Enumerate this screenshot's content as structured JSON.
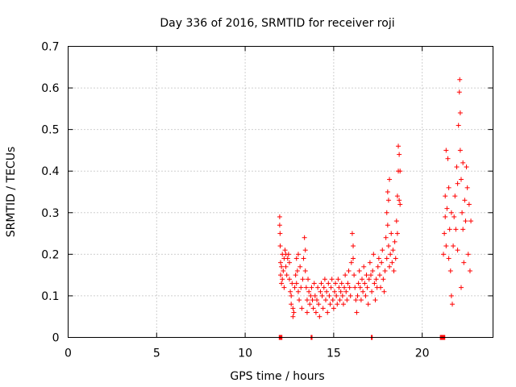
{
  "chart_data": {
    "type": "scatter",
    "title": "Day 336 of 2016, SRMTID for receiver roji",
    "xlabel": "GPS time / hours",
    "ylabel": "SRMTID / TECUs",
    "xlim": [
      0,
      24
    ],
    "ylim": [
      0,
      0.7
    ],
    "xticks": [
      0,
      5,
      10,
      15,
      20
    ],
    "yticks": [
      0,
      0.1,
      0.2,
      0.3,
      0.4,
      0.5,
      0.6,
      0.7
    ],
    "xtick_labels": [
      "0",
      "5",
      "10",
      "15",
      "20"
    ],
    "ytick_labels": [
      "0",
      "0.1",
      "0.2",
      "0.3",
      "0.4",
      "0.5",
      "0.6",
      "0.7"
    ],
    "grid": true,
    "marker": "+",
    "color": "#ff0000",
    "series": [
      {
        "name": "SRMTID",
        "points": [
          [
            11.95,
            0.29
          ],
          [
            11.95,
            0.27
          ],
          [
            11.97,
            0.25
          ],
          [
            11.98,
            0.22
          ],
          [
            12.0,
            0.18
          ],
          [
            12.0,
            0.15
          ],
          [
            12.05,
            0.13
          ],
          [
            12.05,
            0.17
          ],
          [
            12.1,
            0.2
          ],
          [
            12.1,
            0.14
          ],
          [
            12.15,
            0.16
          ],
          [
            12.2,
            0.19
          ],
          [
            12.2,
            0.12
          ],
          [
            12.25,
            0.21
          ],
          [
            12.3,
            0.17
          ],
          [
            12.3,
            0.2
          ],
          [
            12.35,
            0.15
          ],
          [
            12.4,
            0.19
          ],
          [
            12.45,
            0.2
          ],
          [
            12.5,
            0.18
          ],
          [
            12.5,
            0.14
          ],
          [
            12.55,
            0.11
          ],
          [
            12.6,
            0.1
          ],
          [
            12.6,
            0.08
          ],
          [
            12.65,
            0.13
          ],
          [
            12.7,
            0.07
          ],
          [
            12.7,
            0.05
          ],
          [
            12.75,
            0.06
          ],
          [
            12.8,
            0.12
          ],
          [
            12.85,
            0.15
          ],
          [
            12.9,
            0.19
          ],
          [
            12.9,
            0.13
          ],
          [
            12.95,
            0.16
          ],
          [
            13.0,
            0.2
          ],
          [
            13.0,
            0.11
          ],
          [
            13.05,
            0.09
          ],
          [
            13.1,
            0.17
          ],
          [
            13.15,
            0.12
          ],
          [
            13.2,
            0.07
          ],
          [
            13.25,
            0.14
          ],
          [
            13.3,
            0.19
          ],
          [
            13.35,
            0.24
          ],
          [
            13.4,
            0.21
          ],
          [
            13.4,
            0.16
          ],
          [
            13.45,
            0.12
          ],
          [
            13.5,
            0.09
          ],
          [
            13.5,
            0.06
          ],
          [
            13.55,
            0.14
          ],
          [
            13.6,
            0.11
          ],
          [
            13.65,
            0.08
          ],
          [
            13.7,
            0.1
          ],
          [
            13.75,
            0.12
          ],
          [
            13.8,
            0.09
          ],
          [
            13.85,
            0.07
          ],
          [
            13.9,
            0.13
          ],
          [
            13.95,
            0.1
          ],
          [
            14.0,
            0.06
          ],
          [
            14.05,
            0.09
          ],
          [
            14.1,
            0.12
          ],
          [
            14.15,
            0.08
          ],
          [
            14.2,
            0.05
          ],
          [
            14.25,
            0.11
          ],
          [
            14.3,
            0.13
          ],
          [
            14.35,
            0.1
          ],
          [
            14.4,
            0.07
          ],
          [
            14.45,
            0.12
          ],
          [
            14.5,
            0.14
          ],
          [
            14.55,
            0.09
          ],
          [
            14.6,
            0.11
          ],
          [
            14.65,
            0.06
          ],
          [
            14.7,
            0.13
          ],
          [
            14.75,
            0.1
          ],
          [
            14.8,
            0.08
          ],
          [
            14.85,
            0.12
          ],
          [
            14.9,
            0.14
          ],
          [
            14.95,
            0.09
          ],
          [
            15.0,
            0.07
          ],
          [
            15.05,
            0.11
          ],
          [
            15.1,
            0.13
          ],
          [
            15.15,
            0.1
          ],
          [
            15.2,
            0.08
          ],
          [
            15.25,
            0.14
          ],
          [
            15.3,
            0.12
          ],
          [
            15.35,
            0.09
          ],
          [
            15.4,
            0.11
          ],
          [
            15.45,
            0.13
          ],
          [
            15.5,
            0.1
          ],
          [
            15.55,
            0.08
          ],
          [
            15.6,
            0.12
          ],
          [
            15.65,
            0.15
          ],
          [
            15.7,
            0.11
          ],
          [
            15.75,
            0.09
          ],
          [
            15.8,
            0.13
          ],
          [
            15.85,
            0.16
          ],
          [
            15.9,
            0.12
          ],
          [
            15.95,
            0.1
          ],
          [
            16.0,
            0.18
          ],
          [
            16.05,
            0.25
          ],
          [
            16.1,
            0.22
          ],
          [
            16.1,
            0.19
          ],
          [
            16.15,
            0.15
          ],
          [
            16.2,
            0.12
          ],
          [
            16.25,
            0.09
          ],
          [
            16.3,
            0.06
          ],
          [
            16.35,
            0.1
          ],
          [
            16.4,
            0.13
          ],
          [
            16.45,
            0.16
          ],
          [
            16.5,
            0.12
          ],
          [
            16.55,
            0.09
          ],
          [
            16.6,
            0.14
          ],
          [
            16.65,
            0.11
          ],
          [
            16.7,
            0.17
          ],
          [
            16.75,
            0.13
          ],
          [
            16.8,
            0.1
          ],
          [
            16.85,
            0.15
          ],
          [
            16.9,
            0.12
          ],
          [
            16.95,
            0.08
          ],
          [
            17.0,
            0.14
          ],
          [
            17.05,
            0.18
          ],
          [
            17.1,
            0.15
          ],
          [
            17.15,
            0.11
          ],
          [
            17.2,
            0.16
          ],
          [
            17.25,
            0.2
          ],
          [
            17.3,
            0.13
          ],
          [
            17.35,
            0.09
          ],
          [
            17.4,
            0.14
          ],
          [
            17.45,
            0.12
          ],
          [
            17.5,
            0.17
          ],
          [
            17.55,
            0.19
          ],
          [
            17.6,
            0.15
          ],
          [
            17.65,
            0.12
          ],
          [
            17.7,
            0.18
          ],
          [
            17.75,
            0.21
          ],
          [
            17.8,
            0.14
          ],
          [
            17.85,
            0.11
          ],
          [
            17.9,
            0.16
          ],
          [
            17.95,
            0.24
          ],
          [
            18.0,
            0.19
          ],
          [
            18.0,
            0.3
          ],
          [
            18.05,
            0.35
          ],
          [
            18.05,
            0.27
          ],
          [
            18.1,
            0.33
          ],
          [
            18.1,
            0.22
          ],
          [
            18.15,
            0.38
          ],
          [
            18.15,
            0.17
          ],
          [
            18.2,
            0.2
          ],
          [
            18.25,
            0.25
          ],
          [
            18.3,
            0.18
          ],
          [
            18.35,
            0.21
          ],
          [
            18.4,
            0.16
          ],
          [
            18.45,
            0.23
          ],
          [
            18.5,
            0.19
          ],
          [
            18.55,
            0.28
          ],
          [
            18.6,
            0.34
          ],
          [
            18.6,
            0.25
          ],
          [
            18.65,
            0.4
          ],
          [
            18.65,
            0.46
          ],
          [
            18.7,
            0.44
          ],
          [
            18.7,
            0.33
          ],
          [
            18.75,
            0.4
          ],
          [
            18.75,
            0.32
          ],
          [
            21.2,
            0.2
          ],
          [
            21.25,
            0.25
          ],
          [
            21.3,
            0.29
          ],
          [
            21.3,
            0.34
          ],
          [
            21.35,
            0.45
          ],
          [
            21.35,
            0.22
          ],
          [
            21.4,
            0.31
          ],
          [
            21.45,
            0.43
          ],
          [
            21.5,
            0.36
          ],
          [
            21.5,
            0.19
          ],
          [
            21.55,
            0.26
          ],
          [
            21.6,
            0.16
          ],
          [
            21.65,
            0.3
          ],
          [
            21.65,
            0.1
          ],
          [
            21.7,
            0.08
          ],
          [
            21.75,
            0.22
          ],
          [
            21.8,
            0.29
          ],
          [
            21.85,
            0.34
          ],
          [
            21.9,
            0.26
          ],
          [
            21.95,
            0.41
          ],
          [
            22.0,
            0.37
          ],
          [
            22.0,
            0.21
          ],
          [
            22.05,
            0.51
          ],
          [
            22.1,
            0.59
          ],
          [
            22.12,
            0.62
          ],
          [
            22.15,
            0.54
          ],
          [
            22.15,
            0.45
          ],
          [
            22.2,
            0.38
          ],
          [
            22.2,
            0.12
          ],
          [
            22.25,
            0.3
          ],
          [
            22.3,
            0.26
          ],
          [
            22.3,
            0.42
          ],
          [
            22.35,
            0.18
          ],
          [
            22.4,
            0.33
          ],
          [
            22.45,
            0.28
          ],
          [
            22.5,
            0.41
          ],
          [
            22.55,
            0.36
          ],
          [
            22.6,
            0.2
          ],
          [
            22.65,
            0.32
          ],
          [
            22.7,
            0.16
          ],
          [
            22.75,
            0.28
          ]
        ]
      }
    ],
    "baseline_markers": [
      {
        "x_start": 11.9,
        "x_end": 12.1,
        "y": 0
      },
      {
        "x_start": 13.7,
        "x_end": 13.8,
        "y": 0
      },
      {
        "x_start": 17.1,
        "x_end": 17.2,
        "y": 0
      },
      {
        "x_start": 21.0,
        "x_end": 21.3,
        "y": 0
      }
    ]
  }
}
